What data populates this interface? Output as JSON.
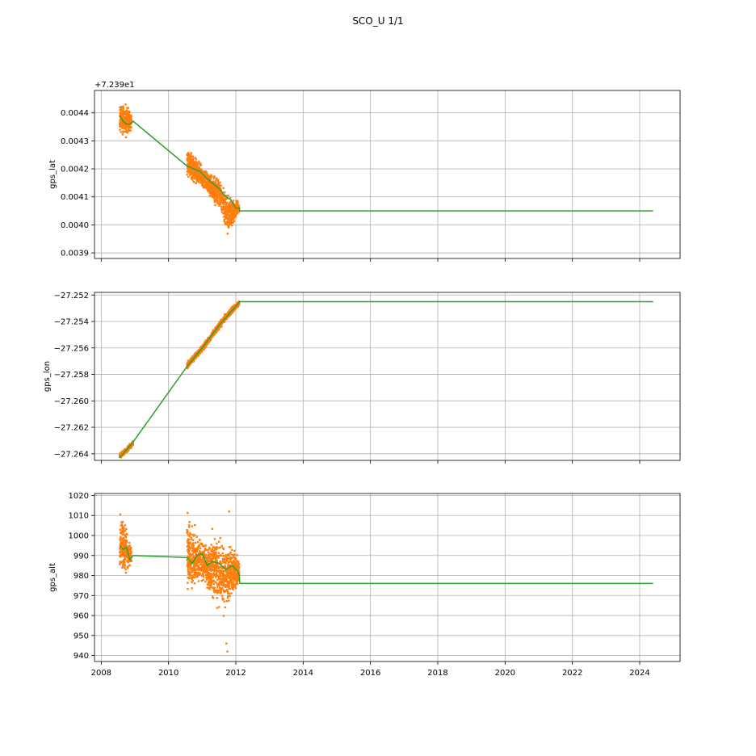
{
  "figure": {
    "title": "SCO_U 1/1",
    "colors": {
      "scatter": "#ff7f0e",
      "line": "#2ca02c",
      "grid": "#b0b0b0",
      "axis": "#000000"
    }
  },
  "chart_data": [
    {
      "type": "scatter",
      "ylabel": "gps_lat",
      "offset_label": "+7.239e1",
      "xlim": [
        2007.8,
        2025.2
      ],
      "ylim": [
        0.00388,
        0.00448
      ],
      "yticks": [
        0.0039,
        0.004,
        0.0041,
        0.0042,
        0.0043,
        0.0044
      ],
      "ytick_labels": [
        "0.0039",
        "0.0040",
        "0.0041",
        "0.0042",
        "0.0043",
        "0.0044"
      ],
      "xticks": [
        2008,
        2010,
        2012,
        2014,
        2016,
        2018,
        2020,
        2022,
        2024
      ],
      "xtick_labels": [],
      "grid": true,
      "series": [
        {
          "kind": "scatter_band",
          "segments": [
            {
              "x": [
                2008.55,
                2008.62,
                2008.68,
                2008.75,
                2008.82,
                2008.9
              ],
              "ymin": [
                0.00432,
                0.00431,
                0.00431,
                0.0043,
                0.00432,
                0.00433
              ],
              "ymax": [
                0.00445,
                0.00444,
                0.00445,
                0.00444,
                0.00443,
                0.0044
              ]
            },
            {
              "x": [
                2010.55,
                2010.7,
                2010.85,
                2011.0,
                2011.15,
                2011.3,
                2011.45,
                2011.6,
                2011.75,
                2011.9,
                2012.05,
                2012.1
              ],
              "ymin": [
                0.00415,
                0.00414,
                0.00413,
                0.00412,
                0.0041,
                0.00408,
                0.00405,
                0.00402,
                0.00395,
                0.00399,
                0.00402,
                0.00403
              ],
              "ymax": [
                0.00429,
                0.00427,
                0.00425,
                0.00422,
                0.0042,
                0.00418,
                0.00418,
                0.00416,
                0.00413,
                0.0041,
                0.0041,
                0.00408
              ]
            }
          ]
        },
        {
          "kind": "line",
          "x": [
            2008.55,
            2008.65,
            2008.75,
            2008.85,
            2008.95,
            2010.55,
            2010.75,
            2010.95,
            2011.1,
            2011.3,
            2011.5,
            2011.7,
            2011.85,
            2012.0,
            2012.1,
            2012.12,
            2024.4
          ],
          "y": [
            0.00439,
            0.00437,
            0.00436,
            0.00436,
            0.00437,
            0.00421,
            0.0042,
            0.00419,
            0.00417,
            0.00415,
            0.00413,
            0.0041,
            0.00409,
            0.00406,
            0.00406,
            0.00405,
            0.00405
          ]
        }
      ]
    },
    {
      "type": "scatter",
      "ylabel": "gps_lon",
      "xlim": [
        2007.8,
        2025.2
      ],
      "ylim": [
        -27.2645,
        -27.2518
      ],
      "yticks": [
        -27.264,
        -27.262,
        -27.26,
        -27.258,
        -27.256,
        -27.254,
        -27.252
      ],
      "ytick_labels": [
        "−27.264",
        "−27.262",
        "−27.260",
        "−27.258",
        "−27.256",
        "−27.254",
        "−27.252"
      ],
      "xticks": [
        2008,
        2010,
        2012,
        2014,
        2016,
        2018,
        2020,
        2022,
        2024
      ],
      "xtick_labels": [],
      "grid": true,
      "series": [
        {
          "kind": "scatter_band",
          "segments": [
            {
              "x": [
                2008.55,
                2008.65,
                2008.75,
                2008.85,
                2008.95
              ],
              "ymin": [
                -27.2644,
                -27.2642,
                -27.264,
                -27.2637,
                -27.2634
              ],
              "ymax": [
                -27.2639,
                -27.2637,
                -27.2635,
                -27.2632,
                -27.263
              ]
            },
            {
              "x": [
                2010.55,
                2010.8,
                2011.05,
                2011.3,
                2011.55,
                2011.8,
                2012.05,
                2012.1
              ],
              "ymin": [
                -27.2577,
                -27.2569,
                -27.2562,
                -27.2553,
                -27.2545,
                -27.2537,
                -27.253,
                -27.2528
              ],
              "ymax": [
                -27.257,
                -27.2563,
                -27.2556,
                -27.2547,
                -27.2538,
                -27.253,
                -27.2525,
                -27.2524
              ]
            }
          ]
        },
        {
          "kind": "line",
          "x": [
            2008.55,
            2008.95,
            2010.55,
            2011.0,
            2011.5,
            2012.12,
            2024.4
          ],
          "y": [
            -27.2643,
            -27.2631,
            -27.2574,
            -27.256,
            -27.2543,
            -27.2525,
            -27.2525
          ]
        }
      ]
    },
    {
      "type": "scatter",
      "ylabel": "gps_alt",
      "xlim": [
        2007.8,
        2025.2
      ],
      "ylim": [
        937,
        1021
      ],
      "yticks": [
        940,
        950,
        960,
        970,
        980,
        990,
        1000,
        1010,
        1020
      ],
      "ytick_labels": [
        "940",
        "950",
        "960",
        "970",
        "980",
        "990",
        "1000",
        "1010",
        "1020"
      ],
      "xticks": [
        2008,
        2010,
        2012,
        2014,
        2016,
        2018,
        2020,
        2022,
        2024
      ],
      "xtick_labels": [
        "2008",
        "2010",
        "2012",
        "2014",
        "2016",
        "2018",
        "2020",
        "2022",
        "2024"
      ],
      "grid": true,
      "series": [
        {
          "kind": "scatter_band",
          "segments": [
            {
              "x": [
                2008.55,
                2008.62,
                2008.68,
                2008.75,
                2008.82,
                2008.9
              ],
              "ymin": [
                976,
                974,
                978,
                980,
                982,
                984
              ],
              "ymax": [
                1012,
                1017,
                1010,
                1006,
                1000,
                996
              ]
            },
            {
              "x": [
                2010.55,
                2010.7,
                2010.85,
                2011.0,
                2011.15,
                2011.3,
                2011.45,
                2011.6,
                2011.75,
                2011.9,
                2012.05,
                2012.1
              ],
              "ymin": [
                970,
                968,
                972,
                974,
                970,
                966,
                962,
                958,
                960,
                968,
                972,
                976
              ],
              "ymax": [
                1015,
                1008,
                1004,
                1000,
                998,
                1004,
                1003,
                1004,
                1001,
                995,
                992,
                988
              ]
            }
          ]
        },
        {
          "kind": "outliers",
          "x": [
            2011.72,
            2011.75,
            2011.8
          ],
          "y": [
            946,
            942,
            1012
          ]
        },
        {
          "kind": "line",
          "x": [
            2008.55,
            2008.65,
            2008.75,
            2008.85,
            2008.95,
            2010.55,
            2010.7,
            2010.85,
            2011.0,
            2011.15,
            2011.3,
            2011.5,
            2011.7,
            2011.9,
            2012.05,
            2012.1,
            2012.12,
            2024.4
          ],
          "y": [
            995,
            993,
            994,
            988,
            990,
            989,
            986,
            990,
            991,
            985,
            987,
            986,
            983,
            985,
            982,
            980,
            976,
            976
          ]
        }
      ]
    }
  ]
}
